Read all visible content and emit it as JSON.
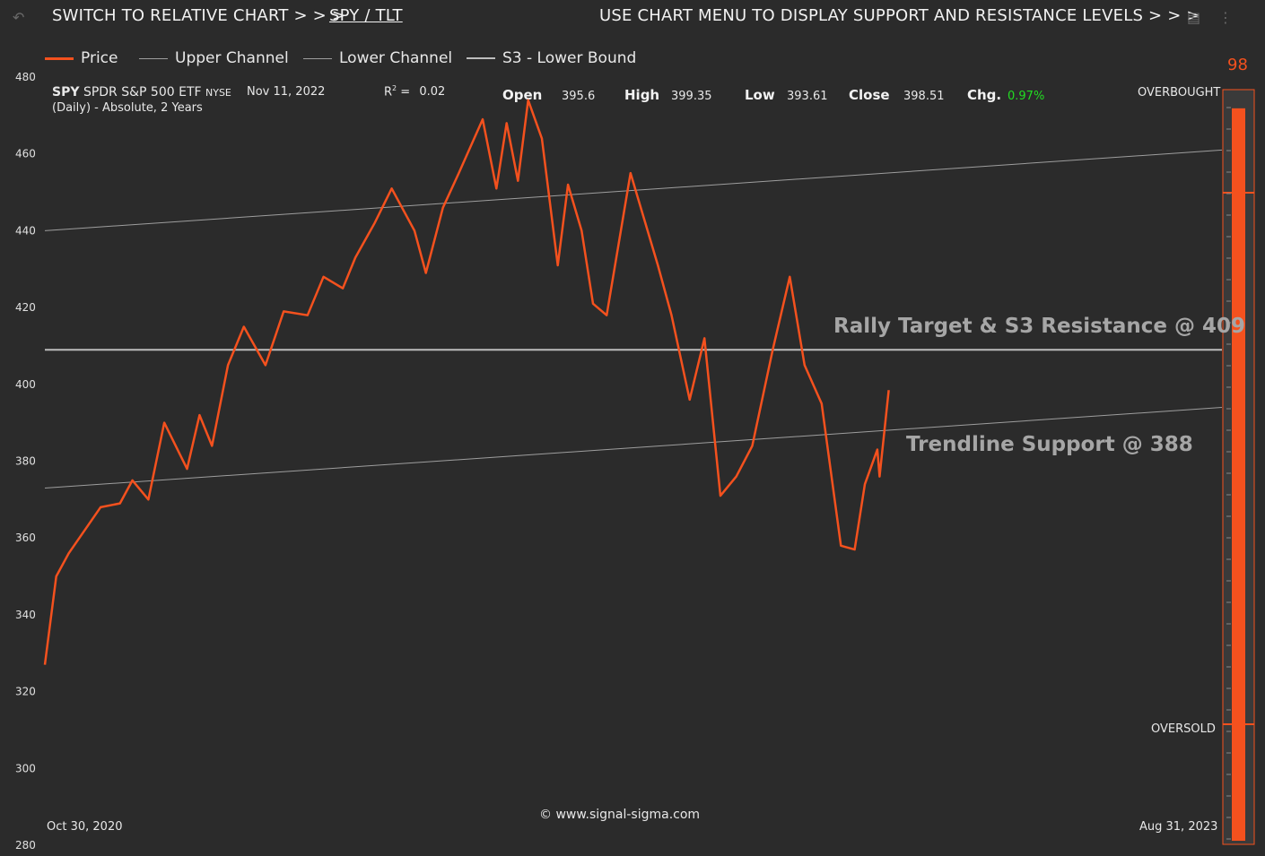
{
  "header": {
    "switch_text": "SWITCH TO RELATIVE CHART > > >",
    "switch_link": "SPY / TLT",
    "menu_text": "USE CHART MENU TO DISPLAY SUPPORT AND RESISTANCE LEVELS > > >",
    "undo_icon": "undo-icon",
    "chart_icon": "chart-settings-icon",
    "more_icon": "more-vertical-icon"
  },
  "legend": [
    {
      "label": "Price",
      "color": "#f4511e"
    },
    {
      "label": "Upper Channel",
      "color": "#9e9e9e"
    },
    {
      "label": "Lower Channel",
      "color": "#9e9e9e"
    },
    {
      "label": "S3 - Lower Bound",
      "color": "#bdbdbd"
    }
  ],
  "info": {
    "ticker": "SPY",
    "name": "SPDR S&P 500 ETF",
    "exchange": "NYSE",
    "subtitle": "(Daily) - Absolute, 2 Years",
    "date": "Nov 11, 2022",
    "r2_label": "R",
    "r2_sup": "2",
    "r2_eq": " =",
    "r2_value": "0.02",
    "open_label": "Open",
    "open_value": "395.6",
    "high_label": "High",
    "high_value": "399.35",
    "low_label": "Low",
    "low_value": "393.61",
    "close_label": "Close",
    "close_value": "398.51",
    "chg_label": "Chg.",
    "chg_value": "0.97%",
    "chg_color": "#22dd22"
  },
  "annotations": {
    "resistance": "Rally Target & S3 Resistance @ 409",
    "support": "Trendline Support @ 388",
    "copyright": "© www.signal-sigma.com"
  },
  "gauge": {
    "value": 98,
    "value_label": "98",
    "overbought": "OVERBOUGHT",
    "oversold": "OVERSOLD",
    "color": "#f4511e"
  },
  "chart_data": {
    "type": "line",
    "ylim": [
      280,
      480
    ],
    "yticks": [
      480,
      460,
      440,
      420,
      400,
      380,
      360,
      340,
      320,
      300,
      280
    ],
    "x_start_label": "Oct 30, 2020",
    "x_end_label": "Aug 31, 2023",
    "grid": false,
    "legend_position": "top-left",
    "series": [
      {
        "name": "Price",
        "color": "#f4511e",
        "x_dates": [
          "2020-10-30",
          "2020-11-09",
          "2020-11-20",
          "2020-12-04",
          "2020-12-18",
          "2021-01-04",
          "2021-01-15",
          "2021-01-29",
          "2021-02-12",
          "2021-03-04",
          "2021-03-15",
          "2021-03-26",
          "2021-04-09",
          "2021-04-23",
          "2021-05-12",
          "2021-05-28",
          "2021-06-18",
          "2021-07-02",
          "2021-07-19",
          "2021-07-30",
          "2021-08-16",
          "2021-08-31",
          "2021-09-20",
          "2021-09-30",
          "2021-10-15",
          "2021-10-29",
          "2021-11-19",
          "2021-12-01",
          "2021-12-10",
          "2021-12-20",
          "2021-12-29",
          "2022-01-10",
          "2022-01-24",
          "2022-02-02",
          "2022-02-14",
          "2022-02-24",
          "2022-03-08",
          "2022-03-29",
          "2022-04-08",
          "2022-04-22",
          "2022-05-04",
          "2022-05-20",
          "2022-06-02",
          "2022-06-16",
          "2022-06-30",
          "2022-07-14",
          "2022-08-01",
          "2022-08-16",
          "2022-08-29",
          "2022-09-13",
          "2022-09-30",
          "2022-10-12",
          "2022-10-21",
          "2022-11-01",
          "2022-11-03",
          "2022-11-11"
        ],
        "values": [
          327,
          350,
          356,
          362,
          368,
          369,
          375,
          370,
          390,
          378,
          392,
          384,
          405,
          415,
          405,
          419,
          418,
          428,
          425,
          433,
          442,
          451,
          440,
          429,
          446,
          455,
          469,
          451,
          468,
          453,
          474,
          464,
          431,
          452,
          440,
          421,
          418,
          455,
          445,
          431,
          418,
          396,
          412,
          371,
          376,
          384,
          409,
          428,
          405,
          395,
          358,
          357,
          374,
          383,
          376,
          398.51
        ]
      },
      {
        "name": "Upper Channel",
        "x_dates": [
          "2020-10-30",
          "2023-08-31"
        ],
        "values": [
          440,
          461
        ]
      },
      {
        "name": "Lower Channel",
        "x_dates": [
          "2020-10-30",
          "2023-08-31"
        ],
        "values": [
          373,
          394
        ]
      },
      {
        "name": "S3 - Lower Bound",
        "x_dates": [
          "2020-10-30",
          "2023-08-31"
        ],
        "values": [
          409,
          409
        ]
      }
    ]
  }
}
